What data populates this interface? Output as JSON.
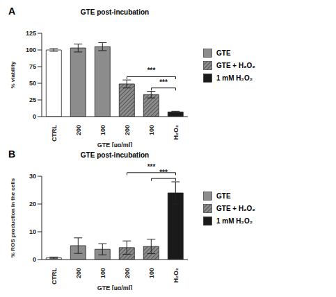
{
  "chart_data": [
    {
      "type": "bar",
      "panel": "A",
      "title": "GTE post-incubation",
      "y_label": "% viability",
      "x_label": "GTE [µg/ml]",
      "categories": [
        "CTRL",
        "200",
        "100",
        "200",
        "100",
        "H₂O₂"
      ],
      "series": [
        {
          "color": "#ffffff",
          "values": [
            100,
            null,
            null,
            null,
            null,
            null
          ],
          "errors": [
            2,
            null,
            null,
            null,
            null,
            null
          ]
        },
        {
          "name": "GTE",
          "color": "#8c8c8c",
          "values": [
            null,
            103,
            105,
            null,
            null,
            null
          ],
          "errors": [
            null,
            6,
            6,
            null,
            null,
            null
          ]
        },
        {
          "name": "GTE + H₂O₂",
          "color": "#8c8c8c",
          "line_style": "hatched",
          "values": [
            null,
            null,
            null,
            49,
            33,
            null
          ],
          "errors": [
            null,
            null,
            null,
            6,
            5,
            null
          ]
        },
        {
          "name": "1 mM H₂O₂",
          "color": "#1a1a1a",
          "values": [
            null,
            null,
            null,
            null,
            null,
            7
          ],
          "errors": [
            null,
            null,
            null,
            null,
            null,
            1
          ]
        }
      ],
      "ylim": [
        0,
        125
      ],
      "yticks": [
        0,
        25,
        50,
        75,
        100,
        125
      ],
      "legend": "right",
      "annotations": [
        {
          "from": 3,
          "to": 5,
          "text": "***"
        },
        {
          "from": 4,
          "to": 5,
          "text": "***"
        }
      ]
    },
    {
      "type": "bar",
      "panel": "B",
      "title": "GTE post-incubation",
      "y_label": "% ROS production in the cells",
      "x_label": "GTE [µg/ml]",
      "categories": [
        "CTRL",
        "200",
        "100",
        "200",
        "100",
        "H₂O₂"
      ],
      "series": [
        {
          "color": "#ffffff",
          "values": [
            0.6,
            null,
            null,
            null,
            null,
            null
          ],
          "errors": [
            0.3,
            null,
            null,
            null,
            null,
            null
          ]
        },
        {
          "name": "GTE",
          "color": "#8c8c8c",
          "values": [
            null,
            5,
            3.7,
            null,
            null,
            null
          ],
          "errors": [
            null,
            2.8,
            2,
            null,
            null,
            null
          ]
        },
        {
          "name": "GTE + H₂O₂",
          "color": "#8c8c8c",
          "line_style": "hatched",
          "values": [
            null,
            null,
            null,
            4.3,
            4.7,
            null
          ],
          "errors": [
            null,
            null,
            null,
            2.4,
            2.6,
            null
          ]
        },
        {
          "name": "1 mM H₂O₂",
          "color": "#1a1a1a",
          "values": [
            null,
            null,
            null,
            null,
            null,
            24
          ],
          "errors": [
            null,
            null,
            null,
            null,
            null,
            4
          ]
        }
      ],
      "ylim": [
        0,
        30
      ],
      "yticks": [
        0,
        10,
        20,
        30
      ],
      "legend": "right",
      "annotations": [
        {
          "from": 3,
          "to": 5,
          "text": "***"
        },
        {
          "from": 4,
          "to": 5,
          "text": "***"
        }
      ]
    }
  ]
}
